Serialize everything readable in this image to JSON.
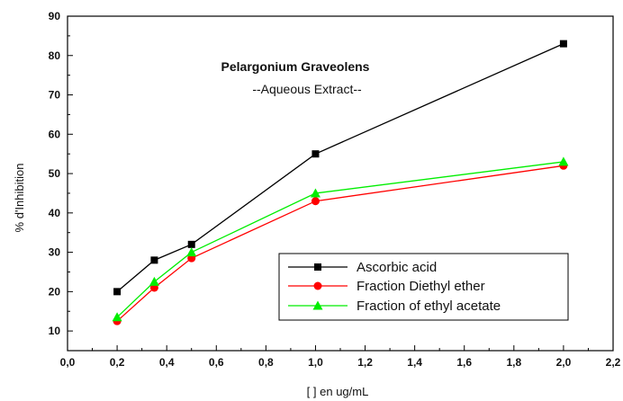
{
  "chart_data": {
    "type": "line",
    "title": "Pelargonium Graveolens",
    "subtitle": "--Aqueous Extract--",
    "xlabel": "[ ] en ug/mL",
    "ylabel": "% d'Inhibition",
    "xlim": [
      0.0,
      2.2
    ],
    "ylim": [
      5,
      90
    ],
    "x_ticks": [
      "0,0",
      "0,2",
      "0,4",
      "0,6",
      "0,8",
      "1,0",
      "1,2",
      "1,4",
      "1,6",
      "1,8",
      "2,0",
      "2,2"
    ],
    "y_ticks": [
      "10",
      "20",
      "30",
      "40",
      "50",
      "60",
      "70",
      "80",
      "90"
    ],
    "grid": false,
    "legend_position": "bottom-right",
    "x": [
      0.2,
      0.35,
      0.5,
      1.0,
      2.0
    ],
    "series": [
      {
        "name": "Ascorbic acid",
        "marker": "square",
        "color": "#000000",
        "values": [
          20,
          28,
          32,
          55,
          83
        ]
      },
      {
        "name": "Fraction Diethyl ether",
        "marker": "circle",
        "color": "#ff0000",
        "values": [
          12.5,
          21,
          28.5,
          43,
          52
        ]
      },
      {
        "name": "Fraction of ethyl acetate",
        "marker": "triangle",
        "color": "#00ee00",
        "values": [
          13.5,
          22.5,
          30,
          45,
          53
        ]
      }
    ]
  }
}
